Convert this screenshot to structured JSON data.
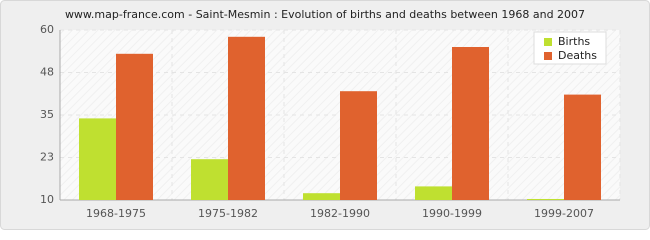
{
  "chart_data": {
    "type": "bar",
    "title": "www.map-france.com - Saint-Mesmin : Evolution of births and deaths between 1968 and 2007",
    "categories": [
      "1968-1975",
      "1975-1982",
      "1982-1990",
      "1990-1999",
      "1999-2007"
    ],
    "series": [
      {
        "name": "Births",
        "color": "#bfe030",
        "values": [
          34,
          22,
          12,
          14,
          10.3
        ]
      },
      {
        "name": "Deaths",
        "color": "#e0622e",
        "values": [
          53,
          58,
          42,
          55,
          41
        ]
      }
    ],
    "ylim": [
      10,
      60
    ],
    "yticks": [
      10,
      {
        "value": 22.5,
        "label": "23"
      },
      35,
      {
        "value": 47.5,
        "label": "48"
      },
      60
    ],
    "grid": true,
    "legend": "top-right"
  }
}
